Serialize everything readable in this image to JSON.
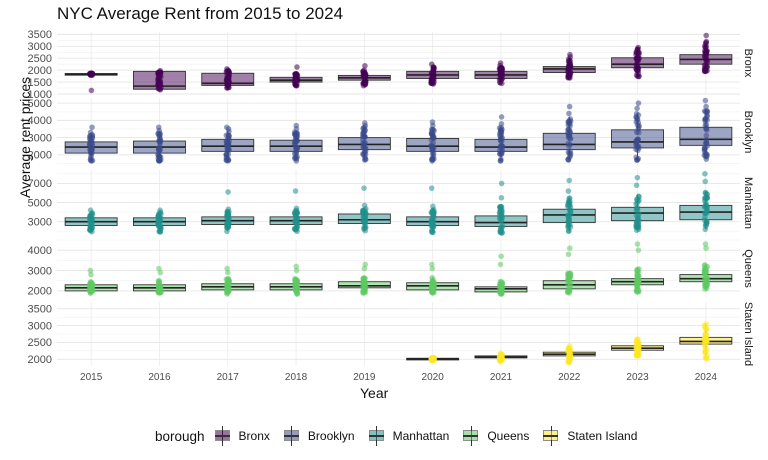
{
  "chart_data": {
    "type": "box",
    "title": "NYC Average Rent from 2015 to 2024",
    "xlabel": "Year",
    "ylabel": "Average rent prices",
    "categories": [
      "2015",
      "2016",
      "2017",
      "2018",
      "2019",
      "2020",
      "2021",
      "2022",
      "2023",
      "2024"
    ],
    "legend": {
      "title": "borough",
      "position": "bottom"
    },
    "grid": true,
    "facets": [
      {
        "name": "Bronx",
        "color": "#440154",
        "ylim": [
          1000,
          3600
        ],
        "yticks": [
          "1000",
          "1500",
          "2000",
          "2500",
          "3000",
          "3500"
        ],
        "boxes": [
          {
            "x": "2015",
            "q1": 1790,
            "median": 1820,
            "q3": 1860,
            "min": 1790,
            "max": 1870,
            "points": [
              1150,
              1800,
              1850
            ]
          },
          {
            "x": "2016",
            "q1": 1200,
            "median": 1330,
            "q3": 1950,
            "min": 1200,
            "max": 1960,
            "points": [
              1180,
              1250,
              1900,
              1980
            ]
          },
          {
            "x": "2017",
            "q1": 1360,
            "median": 1450,
            "q3": 1870,
            "min": 1250,
            "max": 2000,
            "points": [
              1250,
              1400,
              1950,
              2050
            ]
          },
          {
            "x": "2018",
            "q1": 1500,
            "median": 1580,
            "q3": 1700,
            "min": 1350,
            "max": 1850,
            "points": [
              1350,
              1800,
              1850,
              2130
            ]
          },
          {
            "x": "2019",
            "q1": 1580,
            "median": 1680,
            "q3": 1780,
            "min": 1380,
            "max": 2000,
            "points": [
              1350,
              1900,
              2000,
              2180
            ]
          },
          {
            "x": "2020",
            "q1": 1650,
            "median": 1800,
            "q3": 1950,
            "min": 1420,
            "max": 2150,
            "points": [
              1420,
              2050,
              2250
            ]
          },
          {
            "x": "2021",
            "q1": 1650,
            "median": 1800,
            "q3": 1950,
            "min": 1450,
            "max": 2200,
            "points": [
              1450,
              2050,
              2300
            ]
          },
          {
            "x": "2022",
            "q1": 1900,
            "median": 2050,
            "q3": 2150,
            "min": 1650,
            "max": 2500,
            "points": [
              1700,
              2300,
              2550,
              2650
            ]
          },
          {
            "x": "2023",
            "q1": 2100,
            "median": 2250,
            "q3": 2520,
            "min": 1700,
            "max": 2950,
            "points": [
              1750,
              2700,
              2850,
              2950
            ]
          },
          {
            "x": "2024",
            "q1": 2250,
            "median": 2450,
            "q3": 2650,
            "min": 1950,
            "max": 3150,
            "points": [
              1950,
              3000,
              3200,
              3450
            ]
          }
        ]
      },
      {
        "name": "Brooklyn",
        "color": "#3b4b8a",
        "ylim": [
          1350,
          5300
        ],
        "yticks": [
          "2000",
          "3000",
          "4000",
          "5000"
        ],
        "boxes": [
          {
            "x": "2015",
            "q1": 2100,
            "median": 2450,
            "q3": 2750,
            "min": 1650,
            "max": 3200,
            "points": [
              1650,
              3300,
              3600
            ]
          },
          {
            "x": "2016",
            "q1": 2100,
            "median": 2450,
            "q3": 2800,
            "min": 1650,
            "max": 3300,
            "points": [
              1650,
              3400,
              3600
            ]
          },
          {
            "x": "2017",
            "q1": 2200,
            "median": 2500,
            "q3": 2900,
            "min": 1650,
            "max": 3400,
            "points": [
              1650,
              3500,
              3600
            ]
          },
          {
            "x": "2018",
            "q1": 2200,
            "median": 2500,
            "q3": 2850,
            "min": 1650,
            "max": 3400,
            "points": [
              1650,
              3500,
              3700
            ]
          },
          {
            "x": "2019",
            "q1": 2300,
            "median": 2600,
            "q3": 3000,
            "min": 1700,
            "max": 3600,
            "points": [
              1700,
              3700,
              3850
            ]
          },
          {
            "x": "2020",
            "q1": 2200,
            "median": 2500,
            "q3": 2950,
            "min": 1650,
            "max": 3500,
            "points": [
              1650,
              3700,
              3900
            ]
          },
          {
            "x": "2021",
            "q1": 2200,
            "median": 2450,
            "q3": 2900,
            "min": 1650,
            "max": 3600,
            "points": [
              1650,
              3800,
              4200
            ]
          },
          {
            "x": "2022",
            "q1": 2300,
            "median": 2600,
            "q3": 3250,
            "min": 1700,
            "max": 4200,
            "points": [
              1700,
              4400,
              4800
            ]
          },
          {
            "x": "2023",
            "q1": 2400,
            "median": 2750,
            "q3": 3450,
            "min": 1700,
            "max": 4400,
            "points": [
              1700,
              4700,
              5000
            ]
          },
          {
            "x": "2024",
            "q1": 2550,
            "median": 2900,
            "q3": 3600,
            "min": 1750,
            "max": 4600,
            "points": [
              1750,
              4800,
              5150
            ]
          }
        ]
      },
      {
        "name": "Manhattan",
        "color": "#21908d",
        "ylim": [
          1500,
          8400
        ],
        "yticks": [
          "3000",
          "5000",
          "7000"
        ],
        "boxes": [
          {
            "x": "2015",
            "q1": 2600,
            "median": 3000,
            "q3": 3400,
            "min": 1900,
            "max": 4000,
            "points": [
              1950,
              4200
            ]
          },
          {
            "x": "2016",
            "q1": 2600,
            "median": 3000,
            "q3": 3400,
            "min": 1900,
            "max": 4000,
            "points": [
              1950,
              4200
            ]
          },
          {
            "x": "2017",
            "q1": 2700,
            "median": 3100,
            "q3": 3500,
            "min": 2000,
            "max": 4100,
            "points": [
              2000,
              4300,
              6100
            ]
          },
          {
            "x": "2018",
            "q1": 2700,
            "median": 3100,
            "q3": 3500,
            "min": 2000,
            "max": 4200,
            "points": [
              2000,
              4400,
              6200
            ]
          },
          {
            "x": "2019",
            "q1": 2800,
            "median": 3200,
            "q3": 3800,
            "min": 2050,
            "max": 4400,
            "points": [
              2050,
              4700,
              6500
            ]
          },
          {
            "x": "2020",
            "q1": 2600,
            "median": 3000,
            "q3": 3500,
            "min": 1900,
            "max": 4300,
            "points": [
              1900,
              4600,
              6500
            ]
          },
          {
            "x": "2021",
            "q1": 2500,
            "median": 2900,
            "q3": 3600,
            "min": 1800,
            "max": 4800,
            "points": [
              1800,
              5500,
              7000
            ]
          },
          {
            "x": "2022",
            "q1": 2900,
            "median": 3700,
            "q3": 4300,
            "min": 2000,
            "max": 5500,
            "points": [
              2000,
              6200,
              7300
            ]
          },
          {
            "x": "2023",
            "q1": 3100,
            "median": 3900,
            "q3": 4500,
            "min": 2100,
            "max": 5800,
            "points": [
              2100,
              6800,
              7600
            ]
          },
          {
            "x": "2024",
            "q1": 3200,
            "median": 4000,
            "q3": 4700,
            "min": 2200,
            "max": 6200,
            "points": [
              2200,
              7200,
              8000
            ]
          }
        ]
      },
      {
        "name": "Queens",
        "color": "#5ec962",
        "ylim": [
          1700,
          4500
        ],
        "yticks": [
          "2000",
          "3000",
          "4000"
        ],
        "boxes": [
          {
            "x": "2015",
            "q1": 2000,
            "median": 2150,
            "q3": 2300,
            "min": 1900,
            "max": 2500,
            "points": [
              1900,
              2800,
              3000
            ]
          },
          {
            "x": "2016",
            "q1": 2000,
            "median": 2150,
            "q3": 2300,
            "min": 1900,
            "max": 2500,
            "points": [
              1900,
              2900,
              3100
            ]
          },
          {
            "x": "2017",
            "q1": 2050,
            "median": 2200,
            "q3": 2350,
            "min": 1850,
            "max": 2600,
            "points": [
              1850,
              2900,
              3100
            ]
          },
          {
            "x": "2018",
            "q1": 2050,
            "median": 2200,
            "q3": 2350,
            "min": 1850,
            "max": 2600,
            "points": [
              1850,
              3000,
              3200
            ]
          },
          {
            "x": "2019",
            "q1": 2150,
            "median": 2250,
            "q3": 2450,
            "min": 1900,
            "max": 2700,
            "points": [
              1900,
              3100,
              3300
            ]
          },
          {
            "x": "2020",
            "q1": 2050,
            "median": 2250,
            "q3": 2400,
            "min": 1900,
            "max": 2650,
            "points": [
              1900,
              3100,
              3300
            ]
          },
          {
            "x": "2021",
            "q1": 1950,
            "median": 2100,
            "q3": 2200,
            "min": 1850,
            "max": 2500,
            "points": [
              1850,
              3300,
              3700
            ]
          },
          {
            "x": "2022",
            "q1": 2100,
            "median": 2300,
            "q3": 2500,
            "min": 1900,
            "max": 2900,
            "points": [
              1900,
              3800,
              4100
            ]
          },
          {
            "x": "2023",
            "q1": 2300,
            "median": 2450,
            "q3": 2600,
            "min": 1950,
            "max": 3100,
            "points": [
              1950,
              4000,
              4300
            ]
          },
          {
            "x": "2024",
            "q1": 2450,
            "median": 2600,
            "q3": 2800,
            "min": 2100,
            "max": 3300,
            "points": [
              2100,
              4100,
              4300
            ]
          }
        ]
      },
      {
        "name": "Staten Island",
        "color": "#fde725",
        "ylim": [
          1800,
          3700
        ],
        "yticks": [
          "2000",
          "2500",
          "3000",
          "3500"
        ],
        "boxes": [
          {
            "x": "2020",
            "q1": 1980,
            "median": 2010,
            "q3": 2030,
            "min": 1970,
            "max": 2050,
            "points": [
              1970,
              2040
            ]
          },
          {
            "x": "2021",
            "q1": 2040,
            "median": 2070,
            "q3": 2100,
            "min": 1950,
            "max": 2150,
            "points": [
              1930,
              2180
            ]
          },
          {
            "x": "2022",
            "q1": 2100,
            "median": 2150,
            "q3": 2210,
            "min": 1900,
            "max": 2350,
            "points": [
              1900,
              2400
            ]
          },
          {
            "x": "2023",
            "q1": 2270,
            "median": 2330,
            "q3": 2400,
            "min": 2100,
            "max": 2600,
            "points": [
              2100,
              2600
            ]
          },
          {
            "x": "2024",
            "q1": 2450,
            "median": 2530,
            "q3": 2650,
            "min": 2000,
            "max": 3050,
            "points": [
              2050,
              2900,
              3050
            ]
          }
        ]
      }
    ]
  }
}
